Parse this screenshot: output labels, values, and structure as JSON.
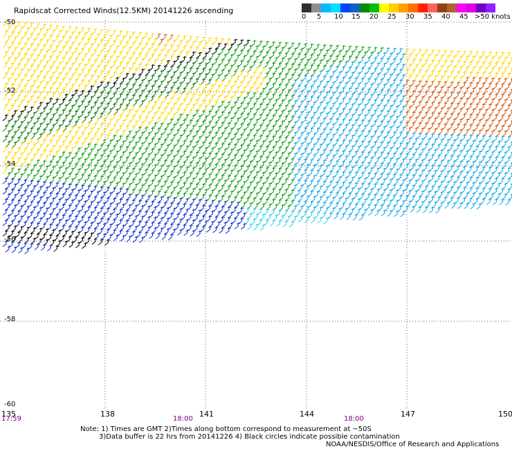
{
  "title": "Rapidscat Corrected Winds(12.5KM) 20141226 ascending",
  "legend": {
    "labels": [
      "0",
      "5",
      "10",
      "15",
      "20",
      "25",
      "30",
      "35",
      "40",
      "45",
      ">50 knots"
    ],
    "colors": [
      "#303030",
      "#909090",
      "#00bbff",
      "#00e0ff",
      "#0044ff",
      "#1060c0",
      "#0a8a0a",
      "#00c000",
      "#ffff00",
      "#ffd000",
      "#ffa000",
      "#ff7000",
      "#ff2000",
      "#ff6060",
      "#8b4513",
      "#b06030",
      "#ff00ff",
      "#e000e0",
      "#7000c0",
      "#9020ff"
    ]
  },
  "axes": {
    "lat_labels": [
      "-50",
      "-52",
      "-54",
      "-56",
      "-58",
      "-60"
    ],
    "lon_labels": [
      "135",
      "138",
      "141",
      "144",
      "147",
      "150"
    ],
    "time_labels": [
      "17:59",
      "18:00",
      "18:00"
    ]
  },
  "notes": {
    "line1": "Note: 1) Times are GMT 2)Times along bottom correspond to measurement at ~50S",
    "line2": "3)Data buffer is 22 hrs from 20141226 4) Black circles indicate possible contamination",
    "credit": "NOAA/NESDIS/Office of Research and Applications"
  },
  "map": {
    "lon_range": [
      135,
      150
    ],
    "lat_range": [
      -60,
      -50
    ],
    "wind_colors": {
      "black": "#000000",
      "orange": "#d85a10",
      "yellow": "#ffd800",
      "green": "#10a010",
      "darkgreen": "#0a7a0a",
      "blue": "#0a2acc",
      "lightblue": "#10a8e8",
      "cyan": "#30d0e8",
      "red": "#e02020"
    }
  }
}
